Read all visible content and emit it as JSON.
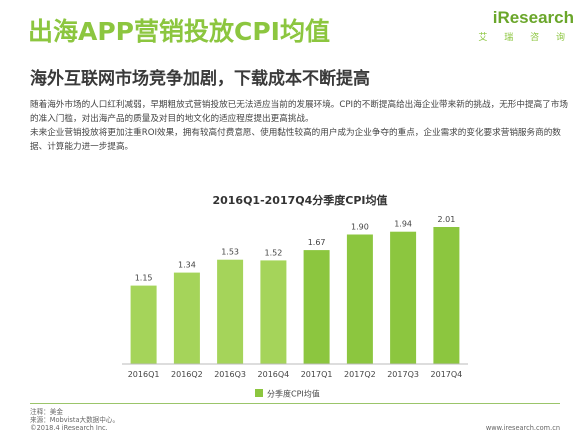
{
  "header": {
    "title": "出海APP营销投放CPI均值",
    "subtitle": "海外互联网市场竞争加剧，下载成本不断提高",
    "logo_main": "iResearch",
    "logo_sub": "艾 瑞 咨 询"
  },
  "body": {
    "paragraph1": "随着海外市场的人口红利减弱，早期粗放式营销投放已无法适应当前的发展环境。CPI的不断提高给出海企业带来新的挑战，无形中提高了市场的准入门槛，对出海产品的质量及对目的地文化的适应程度提出更高挑战。",
    "paragraph2": "未来企业营销投放将更加注重ROI效果，拥有较高付费意愿、使用黏性较高的用户成为企业争夺的重点，企业需求的变化要求营销服务商的数据、计算能力进一步提高。"
  },
  "chart_data": {
    "type": "bar",
    "title": "2016Q1-2017Q4分季度CPI均值",
    "categories": [
      "2016Q1",
      "2016Q2",
      "2016Q3",
      "2016Q4",
      "2017Q1",
      "2017Q2",
      "2017Q3",
      "2017Q4"
    ],
    "series": [
      {
        "name": "分季度CPI均值",
        "values": [
          1.15,
          1.34,
          1.53,
          1.52,
          1.67,
          1.9,
          1.94,
          2.01
        ],
        "value_labels": [
          "1.15",
          "1.34",
          "1.53",
          "1.52",
          "1.67",
          "1.90",
          "1.94",
          "2.01"
        ]
      }
    ],
    "ylim": [
      0,
      2.2
    ],
    "grid": false,
    "legend": "bottom",
    "colors": [
      "#a5d45a",
      "#a5d45a",
      "#a5d45a",
      "#a5d45a",
      "#8cc63f",
      "#8cc63f",
      "#8cc63f",
      "#8cc63f"
    ],
    "legend_color": "#8cc63f"
  },
  "footer": {
    "note1": "注释：美金",
    "note2": "来源：Mobvista大数据中心。",
    "copyright": "©2018.4 iResearch Inc.",
    "url": "www.iresearch.com.cn"
  }
}
